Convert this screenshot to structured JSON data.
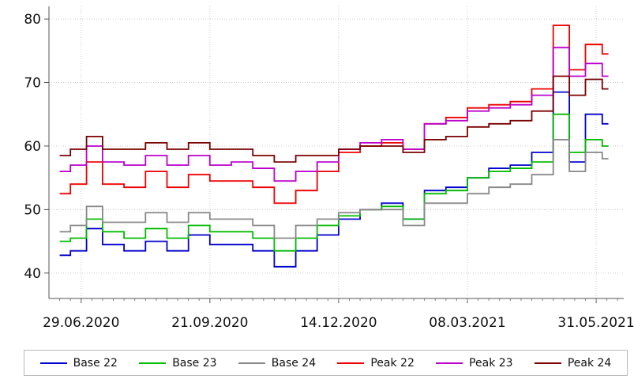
{
  "chart_data": {
    "type": "line",
    "title": "",
    "xlabel": "",
    "ylabel": "",
    "ylim": [
      36,
      82
    ],
    "yticks": [
      40,
      50,
      60,
      70,
      80
    ],
    "xlim": [
      "2020-06-08",
      "2021-06-18"
    ],
    "xticks": [
      "2020-06-29",
      "2020-09-21",
      "2020-12-14",
      "2021-03-08",
      "2021-05-31"
    ],
    "xtick_labels": [
      "29.06.2020",
      "21.09.2020",
      "14.12.2020",
      "08.03.2021",
      "31.05.2021"
    ],
    "grid": true,
    "legend_position": "bottom",
    "series": [
      {
        "name": "Base 22",
        "color": "#0000cc",
        "points": [
          [
            "2020-06-15",
            42.8
          ],
          [
            "2020-06-29",
            43.5
          ],
          [
            "2020-07-06",
            47.0
          ],
          [
            "2020-07-20",
            44.5
          ],
          [
            "2020-08-03",
            43.5
          ],
          [
            "2020-08-17",
            45.0
          ],
          [
            "2020-08-31",
            43.5
          ],
          [
            "2020-09-14",
            46.0
          ],
          [
            "2020-09-28",
            44.5
          ],
          [
            "2020-10-12",
            44.5
          ],
          [
            "2020-10-26",
            43.5
          ],
          [
            "2020-11-09",
            41.0
          ],
          [
            "2020-11-23",
            43.5
          ],
          [
            "2020-12-07",
            46.0
          ],
          [
            "2020-12-21",
            48.5
          ],
          [
            "2021-01-04",
            50.0
          ],
          [
            "2021-01-18",
            51.0
          ],
          [
            "2021-02-01",
            48.5
          ],
          [
            "2021-02-15",
            53.0
          ],
          [
            "2021-03-01",
            53.5
          ],
          [
            "2021-03-15",
            55.0
          ],
          [
            "2021-03-29",
            56.5
          ],
          [
            "2021-04-12",
            57.0
          ],
          [
            "2021-04-26",
            59.0
          ],
          [
            "2021-05-10",
            68.5
          ],
          [
            "2021-05-17",
            57.5
          ],
          [
            "2021-05-31",
            65.0
          ],
          [
            "2021-06-08",
            63.5
          ]
        ]
      },
      {
        "name": "Base 23",
        "color": "#00bb00",
        "points": [
          [
            "2020-06-15",
            45.0
          ],
          [
            "2020-06-29",
            45.5
          ],
          [
            "2020-07-06",
            48.5
          ],
          [
            "2020-07-20",
            46.5
          ],
          [
            "2020-08-03",
            45.5
          ],
          [
            "2020-08-17",
            47.0
          ],
          [
            "2020-08-31",
            45.5
          ],
          [
            "2020-09-14",
            47.5
          ],
          [
            "2020-09-28",
            46.5
          ],
          [
            "2020-10-12",
            46.5
          ],
          [
            "2020-10-26",
            45.5
          ],
          [
            "2020-11-09",
            43.5
          ],
          [
            "2020-11-23",
            45.5
          ],
          [
            "2020-12-07",
            47.5
          ],
          [
            "2020-12-21",
            49.0
          ],
          [
            "2021-01-04",
            50.0
          ],
          [
            "2021-01-18",
            50.5
          ],
          [
            "2021-02-01",
            48.5
          ],
          [
            "2021-02-15",
            52.5
          ],
          [
            "2021-03-01",
            53.0
          ],
          [
            "2021-03-15",
            55.0
          ],
          [
            "2021-03-29",
            56.0
          ],
          [
            "2021-04-12",
            56.5
          ],
          [
            "2021-04-26",
            57.5
          ],
          [
            "2021-05-10",
            65.0
          ],
          [
            "2021-05-17",
            59.0
          ],
          [
            "2021-05-31",
            61.0
          ],
          [
            "2021-06-08",
            60.0
          ]
        ]
      },
      {
        "name": "Base 24",
        "color": "#888888",
        "points": [
          [
            "2020-06-15",
            46.5
          ],
          [
            "2020-06-29",
            47.5
          ],
          [
            "2020-07-06",
            50.5
          ],
          [
            "2020-07-20",
            48.0
          ],
          [
            "2020-08-03",
            48.0
          ],
          [
            "2020-08-17",
            49.5
          ],
          [
            "2020-08-31",
            48.0
          ],
          [
            "2020-09-14",
            49.5
          ],
          [
            "2020-09-28",
            48.5
          ],
          [
            "2020-10-12",
            48.5
          ],
          [
            "2020-10-26",
            47.5
          ],
          [
            "2020-11-09",
            45.5
          ],
          [
            "2020-11-23",
            47.5
          ],
          [
            "2020-12-07",
            48.5
          ],
          [
            "2020-12-21",
            49.5
          ],
          [
            "2021-01-04",
            50.0
          ],
          [
            "2021-01-18",
            50.0
          ],
          [
            "2021-02-01",
            47.5
          ],
          [
            "2021-02-15",
            51.0
          ],
          [
            "2021-03-01",
            51.0
          ],
          [
            "2021-03-15",
            52.5
          ],
          [
            "2021-03-29",
            53.5
          ],
          [
            "2021-04-12",
            54.0
          ],
          [
            "2021-04-26",
            55.5
          ],
          [
            "2021-05-10",
            61.0
          ],
          [
            "2021-05-17",
            56.0
          ],
          [
            "2021-05-31",
            59.0
          ],
          [
            "2021-06-08",
            58.0
          ]
        ]
      },
      {
        "name": "Peak 22",
        "color": "#ee0000",
        "points": [
          [
            "2020-06-15",
            52.5
          ],
          [
            "2020-06-29",
            54.0
          ],
          [
            "2020-07-06",
            57.5
          ],
          [
            "2020-07-20",
            54.0
          ],
          [
            "2020-08-03",
            53.5
          ],
          [
            "2020-08-17",
            56.0
          ],
          [
            "2020-08-31",
            53.5
          ],
          [
            "2020-09-14",
            55.5
          ],
          [
            "2020-09-28",
            54.5
          ],
          [
            "2020-10-12",
            54.5
          ],
          [
            "2020-10-26",
            53.5
          ],
          [
            "2020-11-09",
            51.0
          ],
          [
            "2020-11-23",
            53.0
          ],
          [
            "2020-12-07",
            56.0
          ],
          [
            "2020-12-21",
            59.0
          ],
          [
            "2021-01-04",
            60.0
          ],
          [
            "2021-01-18",
            60.5
          ],
          [
            "2021-02-01",
            59.5
          ],
          [
            "2021-02-15",
            63.5
          ],
          [
            "2021-03-01",
            64.5
          ],
          [
            "2021-03-15",
            66.0
          ],
          [
            "2021-03-29",
            66.5
          ],
          [
            "2021-04-12",
            67.0
          ],
          [
            "2021-04-26",
            69.0
          ],
          [
            "2021-05-10",
            79.0
          ],
          [
            "2021-05-17",
            72.0
          ],
          [
            "2021-05-31",
            76.0
          ],
          [
            "2021-06-08",
            74.5
          ]
        ]
      },
      {
        "name": "Peak 23",
        "color": "#bb00cc",
        "points": [
          [
            "2020-06-15",
            56.0
          ],
          [
            "2020-06-29",
            57.0
          ],
          [
            "2020-07-06",
            60.0
          ],
          [
            "2020-07-20",
            57.5
          ],
          [
            "2020-08-03",
            57.0
          ],
          [
            "2020-08-17",
            58.5
          ],
          [
            "2020-08-31",
            57.0
          ],
          [
            "2020-09-14",
            58.5
          ],
          [
            "2020-09-28",
            57.0
          ],
          [
            "2020-10-12",
            57.5
          ],
          [
            "2020-10-26",
            56.5
          ],
          [
            "2020-11-09",
            54.5
          ],
          [
            "2020-11-23",
            56.0
          ],
          [
            "2020-12-07",
            57.5
          ],
          [
            "2020-12-21",
            59.5
          ],
          [
            "2021-01-04",
            60.5
          ],
          [
            "2021-01-18",
            61.0
          ],
          [
            "2021-02-01",
            59.5
          ],
          [
            "2021-02-15",
            63.5
          ],
          [
            "2021-03-01",
            64.0
          ],
          [
            "2021-03-15",
            65.5
          ],
          [
            "2021-03-29",
            66.0
          ],
          [
            "2021-04-12",
            66.5
          ],
          [
            "2021-04-26",
            68.0
          ],
          [
            "2021-05-10",
            75.5
          ],
          [
            "2021-05-17",
            71.0
          ],
          [
            "2021-05-31",
            73.0
          ],
          [
            "2021-06-08",
            71.0
          ]
        ]
      },
      {
        "name": "Peak 24",
        "color": "#7a0000",
        "points": [
          [
            "2020-06-15",
            58.5
          ],
          [
            "2020-06-29",
            59.5
          ],
          [
            "2020-07-06",
            61.5
          ],
          [
            "2020-07-20",
            59.5
          ],
          [
            "2020-08-03",
            59.5
          ],
          [
            "2020-08-17",
            60.5
          ],
          [
            "2020-08-31",
            59.5
          ],
          [
            "2020-09-14",
            60.5
          ],
          [
            "2020-09-28",
            59.5
          ],
          [
            "2020-10-12",
            59.5
          ],
          [
            "2020-10-26",
            58.5
          ],
          [
            "2020-11-09",
            57.5
          ],
          [
            "2020-11-23",
            58.5
          ],
          [
            "2020-12-07",
            58.5
          ],
          [
            "2020-12-21",
            59.5
          ],
          [
            "2021-01-04",
            60.0
          ],
          [
            "2021-01-18",
            60.0
          ],
          [
            "2021-02-01",
            59.0
          ],
          [
            "2021-02-15",
            61.0
          ],
          [
            "2021-03-01",
            61.5
          ],
          [
            "2021-03-15",
            63.0
          ],
          [
            "2021-03-29",
            63.5
          ],
          [
            "2021-04-12",
            64.0
          ],
          [
            "2021-04-26",
            65.5
          ],
          [
            "2021-05-10",
            71.0
          ],
          [
            "2021-05-17",
            68.0
          ],
          [
            "2021-05-31",
            70.5
          ],
          [
            "2021-06-08",
            69.0
          ]
        ]
      }
    ]
  }
}
